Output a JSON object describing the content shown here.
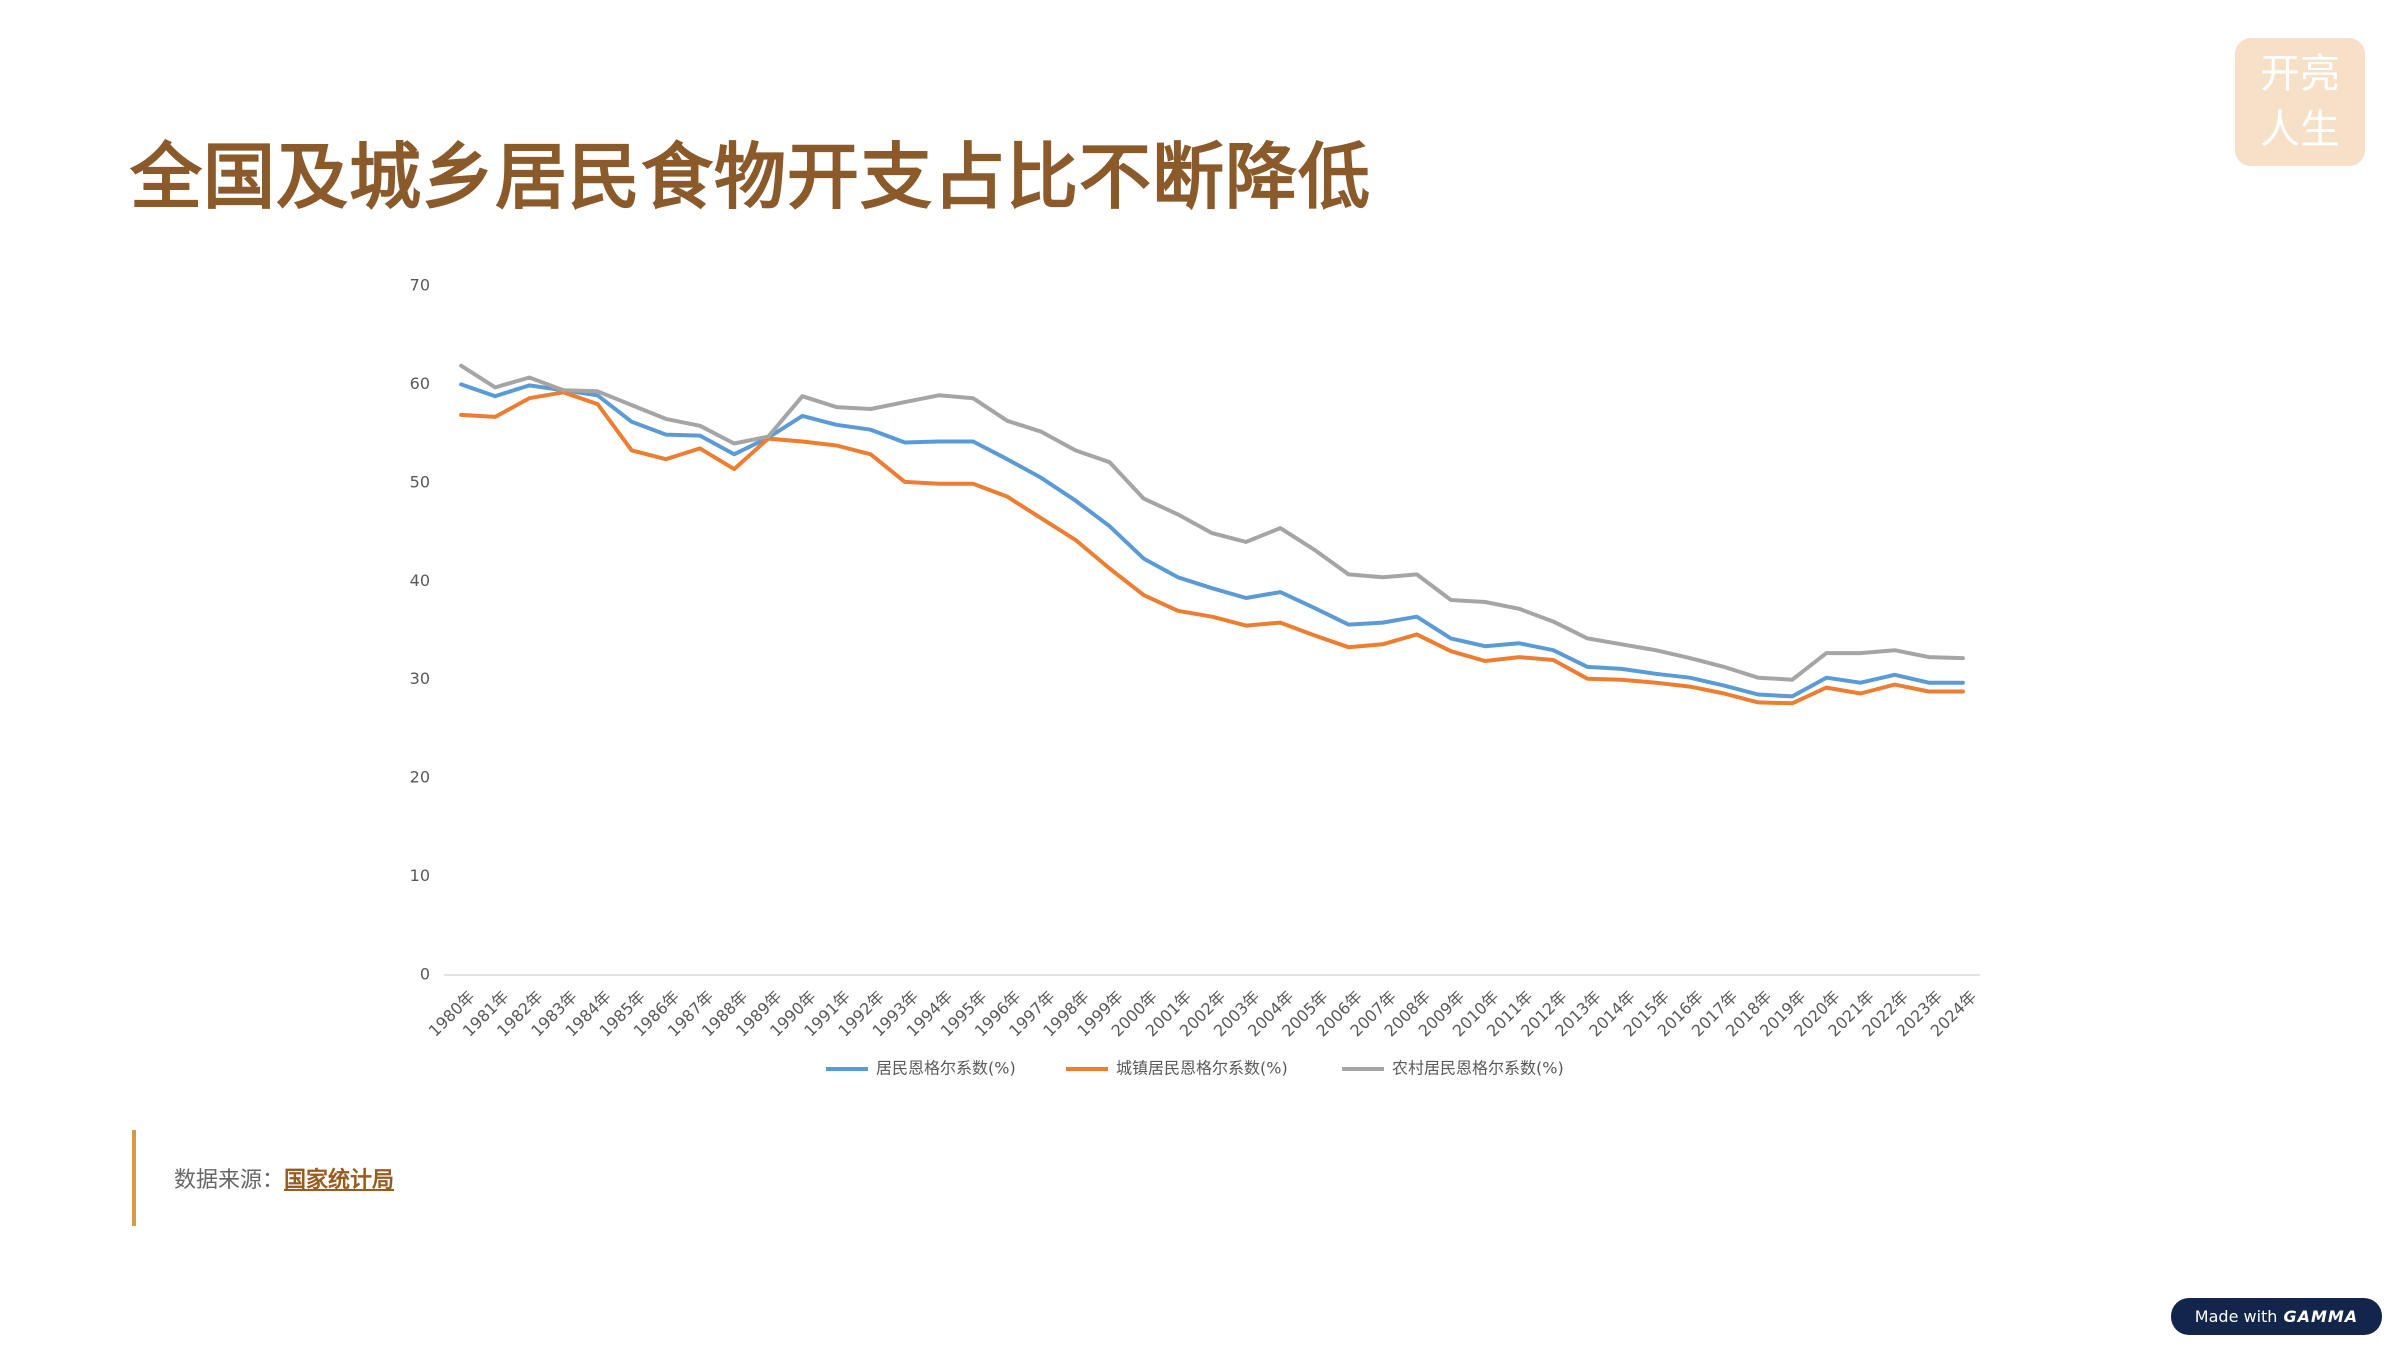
{
  "chart_data": {
    "type": "line",
    "title": "全国及城乡居民食物开支占比不断降低",
    "categories": [
      "1980年",
      "1981年",
      "1982年",
      "1983年",
      "1984年",
      "1985年",
      "1986年",
      "1987年",
      "1988年",
      "1989年",
      "1990年",
      "1991年",
      "1992年",
      "1993年",
      "1994年",
      "1995年",
      "1996年",
      "1997年",
      "1998年",
      "1999年",
      "2000年",
      "2001年",
      "2002年",
      "2003年",
      "2004年",
      "2005年",
      "2006年",
      "2007年",
      "2008年",
      "2009年",
      "2010年",
      "2011年",
      "2012年",
      "2013年",
      "2014年",
      "2015年",
      "2016年",
      "2017年",
      "2018年",
      "2019年",
      "2020年",
      "2021年",
      "2022年",
      "2023年",
      "2024年"
    ],
    "series": [
      {
        "name": "居民恩格尔系数(%)",
        "color": "#5b9bd5",
        "values": [
          60.0,
          58.8,
          59.9,
          59.4,
          58.9,
          56.2,
          54.9,
          54.8,
          52.9,
          54.6,
          56.8,
          55.9,
          55.4,
          54.1,
          54.2,
          54.2,
          52.4,
          50.5,
          48.2,
          45.6,
          42.3,
          40.4,
          39.3,
          38.3,
          38.9,
          37.3,
          35.6,
          35.8,
          36.4,
          34.2,
          33.4,
          33.7,
          33.0,
          31.3,
          31.1,
          30.6,
          30.2,
          29.4,
          28.5,
          28.3,
          30.2,
          29.7,
          30.5,
          29.7,
          29.7
        ]
      },
      {
        "name": "城镇居民恩格尔系数(%)",
        "color": "#ed7d31",
        "values": [
          56.9,
          56.7,
          58.6,
          59.2,
          58.0,
          53.3,
          52.4,
          53.5,
          51.4,
          54.5,
          54.2,
          53.8,
          52.9,
          50.1,
          49.9,
          49.9,
          48.6,
          46.4,
          44.2,
          41.3,
          38.6,
          37.0,
          36.4,
          35.5,
          35.8,
          34.5,
          33.3,
          33.6,
          34.6,
          32.9,
          31.9,
          32.3,
          32.0,
          30.1,
          30.0,
          29.7,
          29.3,
          28.6,
          27.7,
          27.6,
          29.2,
          28.6,
          29.5,
          28.8,
          28.8
        ]
      },
      {
        "name": "农村居民恩格尔系数(%)",
        "color": "#a5a5a5",
        "values": [
          61.9,
          59.7,
          60.7,
          59.4,
          59.3,
          57.9,
          56.5,
          55.8,
          54.0,
          54.7,
          58.8,
          57.7,
          57.5,
          58.2,
          58.9,
          58.6,
          56.3,
          55.2,
          53.3,
          52.1,
          48.4,
          46.8,
          44.9,
          44.0,
          45.4,
          43.2,
          40.7,
          40.4,
          40.7,
          38.1,
          37.9,
          37.2,
          35.9,
          34.2,
          33.6,
          33.0,
          32.2,
          31.3,
          30.2,
          30.0,
          32.7,
          32.7,
          33.0,
          32.3,
          32.2
        ]
      }
    ],
    "ylim": [
      0,
      70
    ],
    "yticks": [
      0,
      10,
      20,
      30,
      40,
      50,
      60,
      70
    ],
    "grid": false,
    "legend": "bottom"
  },
  "source": {
    "label": "数据来源：",
    "link": "国家统计局"
  },
  "logo": {
    "line1": "开亮",
    "line2": "人生"
  },
  "badge": {
    "prefix": "Made with",
    "brand": "GAMMA"
  }
}
